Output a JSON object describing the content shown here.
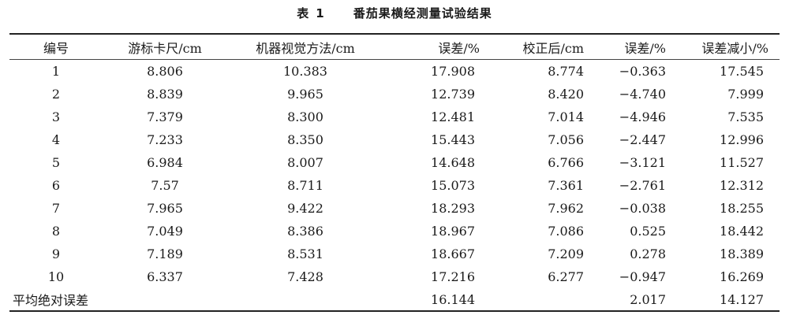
{
  "caption": {
    "label": "表",
    "number": "1",
    "title": "番茄果横经测量试验结果"
  },
  "table": {
    "headers": [
      "编号",
      "游标卡尺/cm",
      "机器视觉方法/cm",
      "误差/%",
      "校正后/cm",
      "误差/%",
      "误差减小/%"
    ],
    "rows": [
      [
        "1",
        "8.806",
        "10.383",
        "17.908",
        "8.774",
        "−0.363",
        "17.545"
      ],
      [
        "2",
        "8.839",
        "9.965",
        "12.739",
        "8.420",
        "−4.740",
        "7.999"
      ],
      [
        "3",
        "7.379",
        "8.300",
        "12.481",
        "7.014",
        "−4.946",
        "7.535"
      ],
      [
        "4",
        "7.233",
        "8.350",
        "15.443",
        "7.056",
        "−2.447",
        "12.996"
      ],
      [
        "5",
        "6.984",
        "8.007",
        "14.648",
        "6.766",
        "−3.121",
        "11.527"
      ],
      [
        "6",
        "7.57",
        "8.711",
        "15.073",
        "7.361",
        "−2.761",
        "12.312"
      ],
      [
        "7",
        "7.965",
        "9.422",
        "18.293",
        "7.962",
        "−0.038",
        "18.255"
      ],
      [
        "8",
        "7.049",
        "8.386",
        "18.967",
        "7.086",
        "0.525",
        "18.442"
      ],
      [
        "9",
        "7.189",
        "8.531",
        "18.667",
        "7.209",
        "0.278",
        "18.389"
      ],
      [
        "10",
        "6.337",
        "7.428",
        "17.216",
        "6.277",
        "−0.947",
        "16.269"
      ]
    ],
    "summary": {
      "label": "平均绝对误差",
      "error_before": "16.144",
      "error_after": "2.017",
      "reduction": "14.127"
    }
  }
}
